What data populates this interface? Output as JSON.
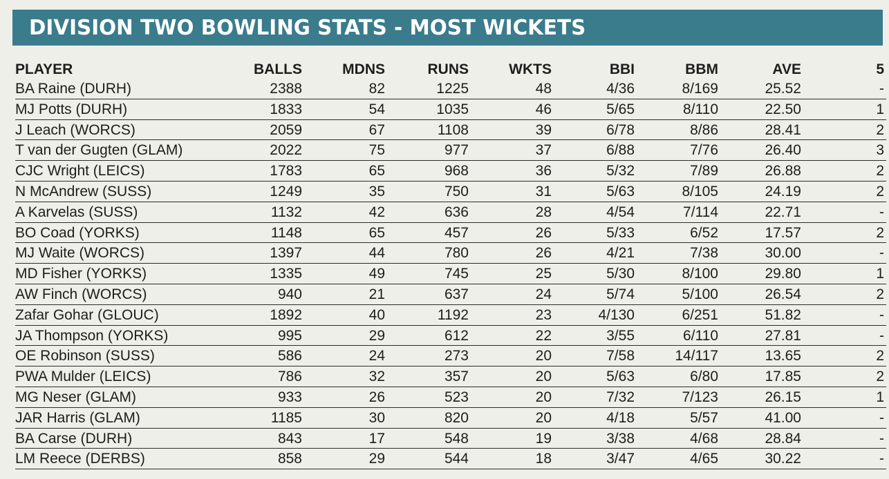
{
  "title": "DIVISION TWO BOWLING STATS - MOST WICKETS",
  "colors": {
    "banner": "#3a7b8c",
    "background": "#efefe9"
  },
  "columns": [
    "PLAYER",
    "BALLS",
    "MDNS",
    "RUNS",
    "WKTS",
    "BBI",
    "BBM",
    "AVE",
    "5"
  ],
  "rows": [
    [
      "BA Raine (DURH)",
      "2388",
      "82",
      "1225",
      "48",
      "4/36",
      "8/169",
      "25.52",
      "-"
    ],
    [
      "MJ Potts (DURH)",
      "1833",
      "54",
      "1035",
      "46",
      "5/65",
      "8/110",
      "22.50",
      "1"
    ],
    [
      "J Leach (WORCS)",
      "2059",
      "67",
      "1108",
      "39",
      "6/78",
      "8/86",
      "28.41",
      "2"
    ],
    [
      "T van der Gugten (GLAM)",
      "2022",
      "75",
      "977",
      "37",
      "6/88",
      "7/76",
      "26.40",
      "3"
    ],
    [
      "CJC Wright (LEICS)",
      "1783",
      "65",
      "968",
      "36",
      "5/32",
      "7/89",
      "26.88",
      "2"
    ],
    [
      "N McAndrew (SUSS)",
      "1249",
      "35",
      "750",
      "31",
      "5/63",
      "8/105",
      "24.19",
      "2"
    ],
    [
      "A Karvelas (SUSS)",
      "1132",
      "42",
      "636",
      "28",
      "4/54",
      "7/114",
      "22.71",
      "-"
    ],
    [
      "BO Coad (YORKS)",
      "1148",
      "65",
      "457",
      "26",
      "5/33",
      "6/52",
      "17.57",
      "2"
    ],
    [
      "MJ Waite (WORCS)",
      "1397",
      "44",
      "780",
      "26",
      "4/21",
      "7/38",
      "30.00",
      "-"
    ],
    [
      "MD Fisher (YORKS)",
      "1335",
      "49",
      "745",
      "25",
      "5/30",
      "8/100",
      "29.80",
      "1"
    ],
    [
      "AW Finch (WORCS)",
      "940",
      "21",
      "637",
      "24",
      "5/74",
      "5/100",
      "26.54",
      "2"
    ],
    [
      "Zafar Gohar (GLOUC)",
      "1892",
      "40",
      "1192",
      "23",
      "4/130",
      "6/251",
      "51.82",
      "-"
    ],
    [
      "JA Thompson (YORKS)",
      "995",
      "29",
      "612",
      "22",
      "3/55",
      "6/110",
      "27.81",
      "-"
    ],
    [
      "OE Robinson (SUSS)",
      "586",
      "24",
      "273",
      "20",
      "7/58",
      "14/117",
      "13.65",
      "2"
    ],
    [
      "PWA Mulder (LEICS)",
      "786",
      "32",
      "357",
      "20",
      "5/63",
      "6/80",
      "17.85",
      "2"
    ],
    [
      "MG Neser (GLAM)",
      "933",
      "26",
      "523",
      "20",
      "7/32",
      "7/123",
      "26.15",
      "1"
    ],
    [
      "JAR Harris (GLAM)",
      "1185",
      "30",
      "820",
      "20",
      "4/18",
      "5/57",
      "41.00",
      "-"
    ],
    [
      "BA Carse (DURH)",
      "843",
      "17",
      "548",
      "19",
      "3/38",
      "4/68",
      "28.84",
      "-"
    ],
    [
      "LM Reece (DERBS)",
      "858",
      "29",
      "544",
      "18",
      "3/47",
      "4/65",
      "30.22",
      "-"
    ]
  ]
}
